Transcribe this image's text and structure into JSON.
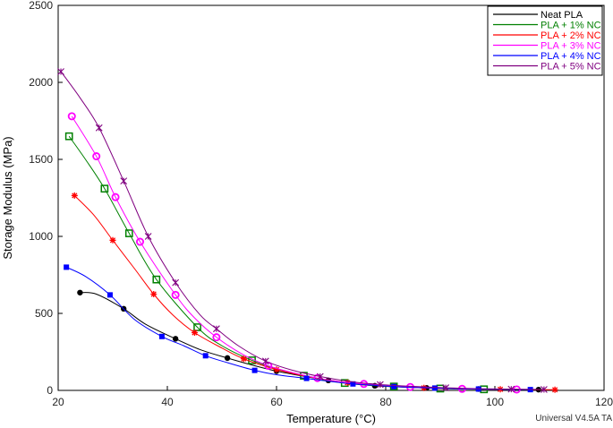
{
  "chart_data": {
    "type": "line",
    "title": "",
    "xlabel": "Temperature (°C)",
    "ylabel": "Storage Modulus (MPa)",
    "xlim": [
      20,
      120
    ],
    "ylim": [
      0,
      2500
    ],
    "xticks": [
      20,
      40,
      60,
      80,
      100,
      120
    ],
    "yticks": [
      0,
      500,
      1000,
      1500,
      2000,
      2500
    ],
    "grid": false,
    "legend_position": "top-right",
    "footer": "Universal V4.5A TA",
    "series": [
      {
        "name": "Neat PLA",
        "color": "#000000",
        "marker": "filled-circle",
        "x": [
          24,
          27,
          32,
          36,
          41.5,
          46,
          51,
          56,
          60,
          65,
          69.5,
          74,
          78,
          83,
          87.5,
          92,
          97,
          102,
          108
        ],
        "y": [
          635,
          625,
          530,
          430,
          335,
          265,
          210,
          160,
          125,
          92,
          65,
          45,
          30,
          22,
          16,
          12,
          9,
          7,
          5
        ],
        "marker_x": [
          24,
          32,
          41.5,
          51,
          60,
          69.5,
          78,
          87.5,
          97,
          108
        ],
        "marker_y": [
          635,
          530,
          335,
          210,
          125,
          65,
          30,
          16,
          9,
          5
        ]
      },
      {
        "name": "PLA + 1% NC",
        "color": "#008000",
        "marker": "open-square",
        "x": [
          22,
          25,
          28.5,
          33,
          38,
          45.5,
          50,
          55.5,
          60,
          65,
          70,
          72.5,
          76,
          81.5,
          86,
          90,
          94,
          98
        ],
        "y": [
          1650,
          1500,
          1310,
          1020,
          720,
          410,
          290,
          195,
          140,
          95,
          60,
          48,
          35,
          25,
          18,
          12,
          9,
          7
        ],
        "marker_x": [
          22,
          28.5,
          33,
          38,
          45.5,
          55.5,
          65,
          72.5,
          81.5,
          90,
          98
        ],
        "marker_y": [
          1650,
          1310,
          1020,
          720,
          410,
          195,
          95,
          48,
          25,
          12,
          7
        ]
      },
      {
        "name": "PLA + 2% NC",
        "color": "#ff0000",
        "marker": "star",
        "x": [
          23,
          26.5,
          30,
          34,
          37.5,
          41,
          45,
          50,
          54,
          60,
          66,
          73,
          80,
          87,
          94,
          101,
          107,
          111
        ],
        "y": [
          1265,
          1140,
          975,
          790,
          625,
          490,
          375,
          275,
          205,
          135,
          88,
          50,
          28,
          16,
          10,
          7,
          5,
          4
        ],
        "marker_x": [
          23,
          30,
          37.5,
          45,
          54,
          60,
          73,
          87,
          101,
          111
        ],
        "marker_y": [
          1265,
          975,
          625,
          375,
          205,
          135,
          50,
          16,
          7,
          4
        ]
      },
      {
        "name": "PLA + 3% NC",
        "color": "#ff00ff",
        "marker": "open-circle",
        "x": [
          22.5,
          27,
          30.5,
          35,
          41.5,
          45,
          49,
          54,
          58.5,
          63,
          67.5,
          72,
          76,
          80,
          84.5,
          89,
          94,
          98,
          104
        ],
        "y": [
          1780,
          1520,
          1255,
          965,
          620,
          470,
          345,
          230,
          160,
          115,
          80,
          55,
          42,
          30,
          22,
          15,
          10,
          8,
          6
        ],
        "marker_x": [
          22.5,
          27,
          30.5,
          35,
          41.5,
          49,
          58.5,
          67.5,
          76,
          84.5,
          94,
          104
        ],
        "marker_y": [
          1780,
          1520,
          1255,
          965,
          620,
          345,
          160,
          80,
          42,
          22,
          10,
          6
        ]
      },
      {
        "name": "PLA + 4% NC",
        "color": "#0000ff",
        "marker": "filled-square",
        "x": [
          21.5,
          25,
          29.5,
          34,
          39,
          43,
          47,
          51,
          56,
          60,
          65.5,
          69,
          74,
          78,
          81.5,
          86,
          89,
          93,
          97,
          101,
          106.5
        ],
        "y": [
          800,
          740,
          620,
          460,
          350,
          290,
          225,
          180,
          130,
          102,
          78,
          62,
          42,
          33,
          25,
          18,
          15,
          11,
          9,
          7,
          5
        ],
        "marker_x": [
          21.5,
          29.5,
          39,
          47,
          56,
          65.5,
          74,
          81.5,
          89,
          97,
          106.5
        ],
        "marker_y": [
          800,
          620,
          350,
          225,
          130,
          78,
          42,
          25,
          15,
          9,
          5
        ]
      },
      {
        "name": "PLA + 5% NC",
        "color": "#800080",
        "marker": "x-plus",
        "x": [
          20.5,
          24,
          27.5,
          32,
          36.5,
          41.5,
          46,
          49,
          53,
          58,
          63,
          68,
          74,
          79,
          85,
          91,
          97,
          103,
          109
        ],
        "y": [
          2070,
          1900,
          1705,
          1360,
          1000,
          700,
          490,
          400,
          290,
          190,
          130,
          90,
          55,
          38,
          26,
          17,
          11,
          8,
          6
        ],
        "marker_x": [
          20.5,
          27.5,
          32,
          36.5,
          41.5,
          49,
          58,
          68,
          79,
          91,
          103,
          109
        ],
        "marker_y": [
          2070,
          1705,
          1360,
          1000,
          700,
          400,
          190,
          90,
          38,
          17,
          8,
          6
        ]
      }
    ]
  }
}
